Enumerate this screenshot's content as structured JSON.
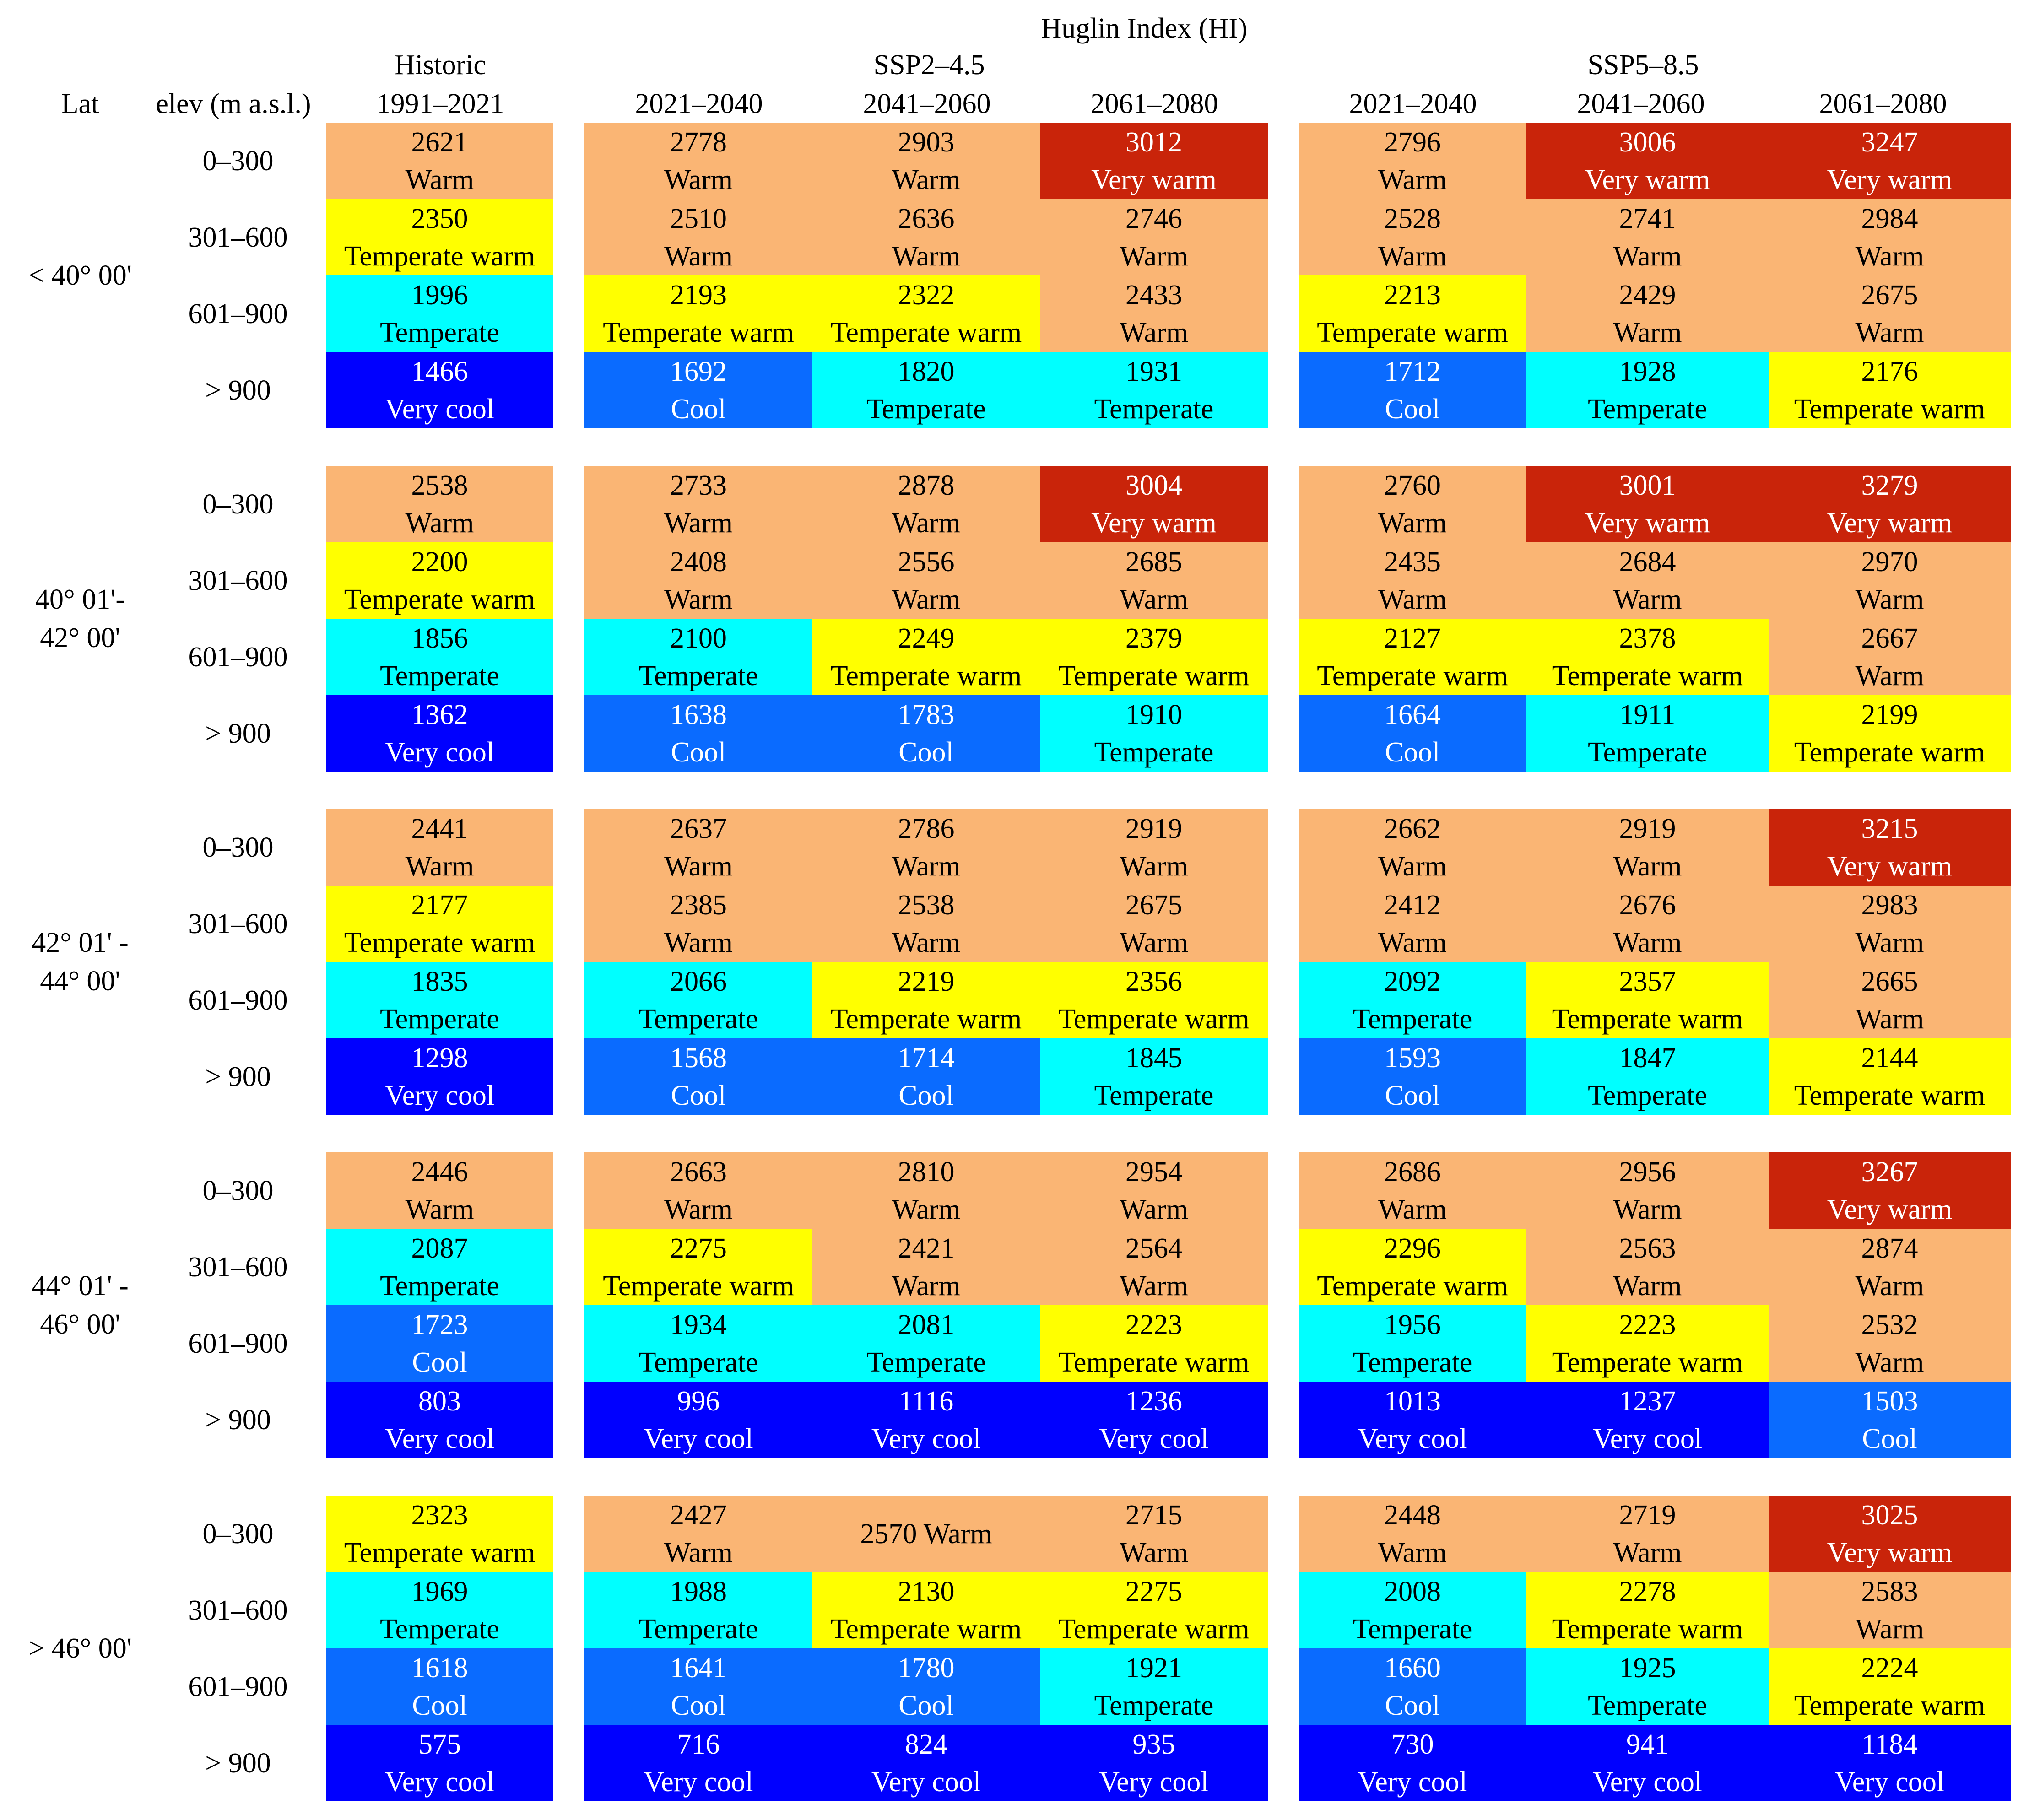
{
  "chart_data": {
    "type": "table",
    "title": "Huglin Index (HI)",
    "row_header_lat": "Lat",
    "row_header_elev": "elev (m a.s.l.)",
    "groups": [
      {
        "label_line1": "Historic",
        "label_line2": "",
        "columns": [
          "1991–2021"
        ]
      },
      {
        "label_line1": "SSP2–4.5",
        "label_line2": "",
        "columns": [
          "2021–2040",
          "2041–2060",
          "2061–2080"
        ]
      },
      {
        "label_line1": "SSP5–8.5",
        "label_line2": "",
        "columns": [
          "2021–2040",
          "2041–2060",
          "2061–2080"
        ]
      }
    ],
    "elevation_bands": [
      "0–300",
      "301–600",
      "601–900",
      "> 900"
    ],
    "class_colors": {
      "Very warm": "#c9240a",
      "Warm": "#fab574",
      "Temperate warm": "#ffff00",
      "Temperate": "#00ffff",
      "Cool": "#0a6bff",
      "Very cool": "#0000ff"
    },
    "class_text_colors": {
      "Very warm": "#ffffff",
      "Warm": "#000000",
      "Temperate warm": "#000000",
      "Temperate": "#000000",
      "Cool": "#ffffff",
      "Very cool": "#ffffff"
    },
    "blocks": [
      {
        "lat_line1": "< 40° 00'",
        "lat_line2": "",
        "rows": [
          [
            [
              2621,
              "Warm"
            ],
            [
              2778,
              "Warm"
            ],
            [
              2903,
              "Warm"
            ],
            [
              3012,
              "Very warm"
            ],
            [
              2796,
              "Warm"
            ],
            [
              3006,
              "Very warm"
            ],
            [
              3247,
              "Very warm"
            ]
          ],
          [
            [
              2350,
              "Temperate warm"
            ],
            [
              2510,
              "Warm"
            ],
            [
              2636,
              "Warm"
            ],
            [
              2746,
              "Warm"
            ],
            [
              2528,
              "Warm"
            ],
            [
              2741,
              "Warm"
            ],
            [
              2984,
              "Warm"
            ]
          ],
          [
            [
              1996,
              "Temperate"
            ],
            [
              2193,
              "Temperate warm"
            ],
            [
              2322,
              "Temperate warm"
            ],
            [
              2433,
              "Warm"
            ],
            [
              2213,
              "Temperate warm"
            ],
            [
              2429,
              "Warm"
            ],
            [
              2675,
              "Warm"
            ]
          ],
          [
            [
              1466,
              "Very cool"
            ],
            [
              1692,
              "Cool"
            ],
            [
              1820,
              "Temperate"
            ],
            [
              1931,
              "Temperate"
            ],
            [
              1712,
              "Cool"
            ],
            [
              1928,
              "Temperate"
            ],
            [
              2176,
              "Temperate warm"
            ]
          ]
        ]
      },
      {
        "lat_line1": "40° 01'-",
        "lat_line2": "42° 00'",
        "rows": [
          [
            [
              2538,
              "Warm"
            ],
            [
              2733,
              "Warm"
            ],
            [
              2878,
              "Warm"
            ],
            [
              3004,
              "Very warm"
            ],
            [
              2760,
              "Warm"
            ],
            [
              3001,
              "Very warm"
            ],
            [
              3279,
              "Very warm"
            ]
          ],
          [
            [
              2200,
              "Temperate warm"
            ],
            [
              2408,
              "Warm"
            ],
            [
              2556,
              "Warm"
            ],
            [
              2685,
              "Warm"
            ],
            [
              2435,
              "Warm"
            ],
            [
              2684,
              "Warm"
            ],
            [
              2970,
              "Warm"
            ]
          ],
          [
            [
              1856,
              "Temperate"
            ],
            [
              2100,
              "Temperate"
            ],
            [
              2249,
              "Temperate warm"
            ],
            [
              2379,
              "Temperate warm"
            ],
            [
              2127,
              "Temperate warm"
            ],
            [
              2378,
              "Temperate warm"
            ],
            [
              2667,
              "Warm"
            ]
          ],
          [
            [
              1362,
              "Very cool"
            ],
            [
              1638,
              "Cool"
            ],
            [
              1783,
              "Cool"
            ],
            [
              1910,
              "Temperate"
            ],
            [
              1664,
              "Cool"
            ],
            [
              1911,
              "Temperate"
            ],
            [
              2199,
              "Temperate warm"
            ]
          ]
        ]
      },
      {
        "lat_line1": "42° 01' -",
        "lat_line2": "44° 00'",
        "rows": [
          [
            [
              2441,
              "Warm"
            ],
            [
              2637,
              "Warm"
            ],
            [
              2786,
              "Warm"
            ],
            [
              2919,
              "Warm"
            ],
            [
              2662,
              "Warm"
            ],
            [
              2919,
              "Warm"
            ],
            [
              3215,
              "Very warm"
            ]
          ],
          [
            [
              2177,
              "Temperate warm"
            ],
            [
              2385,
              "Warm"
            ],
            [
              2538,
              "Warm"
            ],
            [
              2675,
              "Warm"
            ],
            [
              2412,
              "Warm"
            ],
            [
              2676,
              "Warm"
            ],
            [
              2983,
              "Warm"
            ]
          ],
          [
            [
              1835,
              "Temperate"
            ],
            [
              2066,
              "Temperate"
            ],
            [
              2219,
              "Temperate warm"
            ],
            [
              2356,
              "Temperate warm"
            ],
            [
              2092,
              "Temperate"
            ],
            [
              2357,
              "Temperate warm"
            ],
            [
              2665,
              "Warm"
            ]
          ],
          [
            [
              1298,
              "Very cool"
            ],
            [
              1568,
              "Cool"
            ],
            [
              1714,
              "Cool"
            ],
            [
              1845,
              "Temperate"
            ],
            [
              1593,
              "Cool"
            ],
            [
              1847,
              "Temperate"
            ],
            [
              2144,
              "Temperate warm"
            ]
          ]
        ]
      },
      {
        "lat_line1": "44° 01' -",
        "lat_line2": "46° 00'",
        "rows": [
          [
            [
              2446,
              "Warm"
            ],
            [
              2663,
              "Warm"
            ],
            [
              2810,
              "Warm"
            ],
            [
              2954,
              "Warm"
            ],
            [
              2686,
              "Warm"
            ],
            [
              2956,
              "Warm"
            ],
            [
              3267,
              "Very warm"
            ]
          ],
          [
            [
              2087,
              "Temperate"
            ],
            [
              2275,
              "Temperate warm"
            ],
            [
              2421,
              "Warm"
            ],
            [
              2564,
              "Warm"
            ],
            [
              2296,
              "Temperate warm"
            ],
            [
              2563,
              "Warm"
            ],
            [
              2874,
              "Warm"
            ]
          ],
          [
            [
              1723,
              "Cool"
            ],
            [
              1934,
              "Temperate"
            ],
            [
              2081,
              "Temperate"
            ],
            [
              2223,
              "Temperate warm"
            ],
            [
              1956,
              "Temperate"
            ],
            [
              2223,
              "Temperate warm"
            ],
            [
              2532,
              "Warm"
            ]
          ],
          [
            [
              803,
              "Very cool"
            ],
            [
              996,
              "Very cool"
            ],
            [
              1116,
              "Very cool"
            ],
            [
              1236,
              "Very cool"
            ],
            [
              1013,
              "Very cool"
            ],
            [
              1237,
              "Very cool"
            ],
            [
              1503,
              "Cool"
            ]
          ]
        ]
      },
      {
        "lat_line1": "> 46° 00'",
        "lat_line2": "",
        "rows": [
          [
            [
              2323,
              "Temperate warm"
            ],
            [
              2427,
              "Warm"
            ],
            [
              2570,
              "Warm",
              true
            ],
            [
              2715,
              "Warm"
            ],
            [
              2448,
              "Warm"
            ],
            [
              2719,
              "Warm"
            ],
            [
              3025,
              "Very warm"
            ]
          ],
          [
            [
              1969,
              "Temperate"
            ],
            [
              1988,
              "Temperate"
            ],
            [
              2130,
              "Temperate warm"
            ],
            [
              2275,
              "Temperate warm"
            ],
            [
              2008,
              "Temperate"
            ],
            [
              2278,
              "Temperate warm"
            ],
            [
              2583,
              "Warm"
            ]
          ],
          [
            [
              1618,
              "Cool"
            ],
            [
              1641,
              "Cool"
            ],
            [
              1780,
              "Cool"
            ],
            [
              1921,
              "Temperate"
            ],
            [
              1660,
              "Cool"
            ],
            [
              1925,
              "Temperate"
            ],
            [
              2224,
              "Temperate warm"
            ]
          ],
          [
            [
              575,
              "Very cool"
            ],
            [
              716,
              "Very cool"
            ],
            [
              824,
              "Very cool"
            ],
            [
              935,
              "Very cool"
            ],
            [
              730,
              "Very cool"
            ],
            [
              941,
              "Very cool"
            ],
            [
              1184,
              "Very cool"
            ]
          ]
        ]
      }
    ]
  }
}
